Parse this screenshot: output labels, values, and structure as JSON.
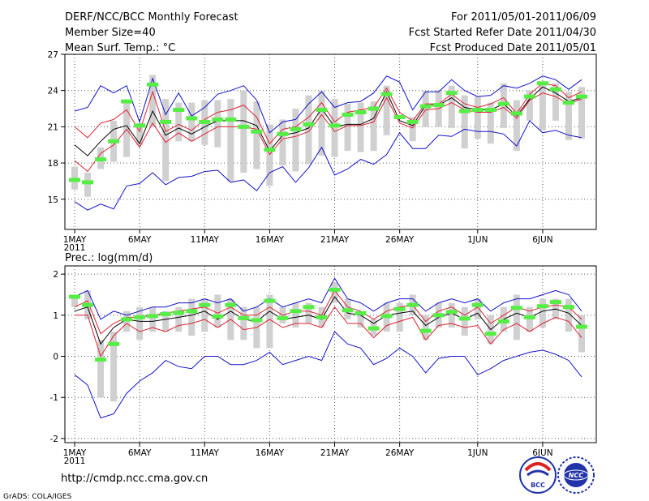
{
  "header": {
    "left_lines": [
      "DERF/NCC/BCC Monthly Forecast",
      "Member Size=40",
      "Mean Surf. Temp.: °C"
    ],
    "right_lines": [
      "For 2011/05/01-2011/06/09",
      "Fcst Started Refer Date 2011/04/30",
      "Fcst Produced Date 2011/05/01"
    ]
  },
  "footer": {
    "url": "http://cmdp.ncc.cma.gov.cn",
    "credit": "GrADS: COLA/IGES",
    "logo_bcc": "BCC",
    "logo_ncc": "NCC"
  },
  "colors": {
    "box": "#d0d0d0",
    "median": "#55ee44",
    "ensemble_mean": "#000000",
    "inner_range": "#dd2233",
    "outer_range": "#1111cc",
    "grid": "#555555"
  },
  "chart_data": [
    {
      "type": "line",
      "title": "Mean Surf. Temp.: °C",
      "ylim": [
        12.5,
        27
      ],
      "yticks": [
        15,
        18,
        21,
        24,
        27
      ],
      "x_range": [
        0,
        40
      ],
      "xticks": [
        {
          "x": 0,
          "label": "1MAY",
          "sub": "2011"
        },
        {
          "x": 5,
          "label": "6MAY"
        },
        {
          "x": 10,
          "label": "11MAY"
        },
        {
          "x": 15,
          "label": "16MAY"
        },
        {
          "x": 20,
          "label": "21MAY"
        },
        {
          "x": 25,
          "label": "26MAY"
        },
        {
          "x": 31,
          "label": "1JUN"
        },
        {
          "x": 36,
          "label": "6JUN"
        }
      ],
      "x": [
        0,
        1,
        2,
        3,
        4,
        5,
        6,
        7,
        8,
        9,
        10,
        11,
        12,
        13,
        14,
        15,
        16,
        17,
        18,
        19,
        20,
        21,
        22,
        23,
        24,
        25,
        26,
        27,
        28,
        29,
        30,
        31,
        32,
        33,
        34,
        35,
        36,
        37,
        38,
        39
      ],
      "series": [
        {
          "name": "box_low",
          "values": [
            15.8,
            15.2,
            17.5,
            18.1,
            18.5,
            19.5,
            21.0,
            16.5,
            19.8,
            19.8,
            19.5,
            19.3,
            16.5,
            17.2,
            17.5,
            16.1,
            17.8,
            17.3,
            17.9,
            18.6,
            18.5,
            19.0,
            18.9,
            19.0,
            20.3,
            22.0,
            19.8,
            21.0,
            21.0,
            20.9,
            19.2,
            20.0,
            19.6,
            20.9,
            19.0,
            21.5,
            20.7,
            21.5,
            19.9,
            20.0
          ]
        },
        {
          "name": "box_high",
          "values": [
            17.7,
            17.2,
            19.3,
            21.5,
            23.0,
            21.3,
            25.3,
            23.3,
            23.0,
            23.0,
            23.2,
            23.2,
            23.3,
            24.0,
            23.1,
            21.2,
            21.6,
            22.5,
            23.6,
            24.0,
            23.3,
            22.9,
            23.0,
            23.1,
            24.4,
            22.0,
            21.8,
            24.0,
            24.0,
            24.4,
            23.6,
            23.5,
            23.0,
            24.6,
            23.2,
            24.0,
            24.7,
            24.6,
            23.9,
            24.3
          ]
        },
        {
          "name": "median",
          "values": [
            16.6,
            16.4,
            18.3,
            19.8,
            23.1,
            21.1,
            24.5,
            21.4,
            22.4,
            21.7,
            21.4,
            21.6,
            21.6,
            21.0,
            20.6,
            19.1,
            20.4,
            20.8,
            21.2,
            22.4,
            21.1,
            22.0,
            22.2,
            22.5,
            23.7,
            21.8,
            21.4,
            22.7,
            22.8,
            23.8,
            22.3,
            22.4,
            22.4,
            22.9,
            22.1,
            23.5,
            24.6,
            24.1,
            23.0,
            23.5
          ]
        },
        {
          "name": "upper_outer",
          "values": [
            22.3,
            22.6,
            24.4,
            23.8,
            24.4,
            21.4,
            25.0,
            22.0,
            23.8,
            21.9,
            22.6,
            23.7,
            24.0,
            24.4,
            23.2,
            20.5,
            21.4,
            21.6,
            22.9,
            23.9,
            22.6,
            23.0,
            23.1,
            23.8,
            25.2,
            24.7,
            22.4,
            23.9,
            23.9,
            24.9,
            24.0,
            23.5,
            23.6,
            24.4,
            24.2,
            24.6,
            25.2,
            24.9,
            24.1,
            24.9
          ]
        },
        {
          "name": "upper_inner",
          "values": [
            21.0,
            20.1,
            21.3,
            21.6,
            22.4,
            20.6,
            23.9,
            20.6,
            21.2,
            20.7,
            21.6,
            22.2,
            22.4,
            22.8,
            21.8,
            19.6,
            20.8,
            21.0,
            21.8,
            23.0,
            21.4,
            22.2,
            22.4,
            22.6,
            24.2,
            22.2,
            21.5,
            22.9,
            22.9,
            23.7,
            22.9,
            22.6,
            22.9,
            23.4,
            22.1,
            23.7,
            24.6,
            24.4,
            23.4,
            23.9
          ]
        },
        {
          "name": "ensemble_mean",
          "values": [
            19.5,
            18.6,
            19.8,
            20.8,
            21.1,
            19.6,
            22.3,
            20.3,
            20.9,
            20.4,
            21.0,
            21.5,
            21.5,
            21.5,
            21.1,
            19.0,
            20.3,
            20.5,
            20.9,
            22.5,
            21.0,
            21.2,
            21.2,
            21.7,
            23.9,
            21.5,
            21.1,
            22.8,
            22.8,
            23.4,
            22.6,
            22.4,
            22.4,
            22.9,
            21.9,
            23.3,
            24.3,
            23.8,
            23.1,
            23.4
          ]
        },
        {
          "name": "lower_inner",
          "values": [
            18.2,
            17.3,
            18.8,
            19.5,
            20.8,
            19.3,
            21.3,
            19.7,
            20.5,
            19.8,
            20.4,
            21.0,
            21.0,
            21.0,
            20.8,
            18.7,
            20.0,
            20.2,
            20.6,
            22.0,
            20.6,
            21.1,
            21.1,
            21.4,
            23.4,
            21.3,
            20.9,
            22.4,
            22.5,
            23.0,
            22.4,
            22.2,
            22.2,
            22.6,
            21.7,
            23.2,
            23.8,
            23.5,
            22.9,
            23.3
          ]
        },
        {
          "name": "lower_outer",
          "values": [
            14.8,
            14.1,
            14.6,
            14.2,
            16.1,
            16.3,
            17.2,
            16.2,
            16.8,
            16.9,
            17.3,
            17.4,
            16.4,
            16.6,
            15.7,
            17.2,
            17.7,
            16.4,
            17.6,
            19.3,
            17.0,
            17.5,
            18.3,
            17.9,
            18.7,
            20.5,
            19.2,
            19.2,
            20.3,
            20.2,
            20.8,
            20.6,
            20.6,
            20.4,
            19.4,
            21.5,
            20.5,
            20.7,
            20.3,
            20.1
          ]
        }
      ]
    },
    {
      "type": "line",
      "title": "Prec.: log(mm/d)",
      "ylim": [
        -2.1,
        2.2
      ],
      "yticks": [
        -2,
        -1,
        0,
        1,
        2
      ],
      "x_range": [
        0,
        40
      ],
      "xticks": [
        {
          "x": 0,
          "label": "1MAY",
          "sub": "2011"
        },
        {
          "x": 5,
          "label": "6MAY"
        },
        {
          "x": 10,
          "label": "11MAY"
        },
        {
          "x": 15,
          "label": "16MAY"
        },
        {
          "x": 20,
          "label": "21MAY"
        },
        {
          "x": 25,
          "label": "26MAY"
        },
        {
          "x": 31,
          "label": "1JUN"
        },
        {
          "x": 36,
          "label": "6JUN"
        }
      ],
      "x": [
        0,
        1,
        2,
        3,
        4,
        5,
        6,
        7,
        8,
        9,
        10,
        11,
        12,
        13,
        14,
        15,
        16,
        17,
        18,
        19,
        20,
        21,
        22,
        23,
        24,
        25,
        26,
        27,
        28,
        29,
        30,
        31,
        32,
        33,
        34,
        35,
        36,
        37,
        38,
        39
      ],
      "series": [
        {
          "name": "box_low",
          "values": [
            1.2,
            0.9,
            -1.0,
            -1.1,
            0.6,
            0.4,
            0.6,
            0.6,
            0.6,
            0.5,
            0.6,
            0.7,
            0.4,
            0.4,
            0.2,
            0.2,
            0.8,
            0.7,
            0.8,
            0.7,
            1.3,
            0.9,
            0.7,
            0.5,
            0.6,
            0.6,
            1.0,
            0.4,
            0.7,
            0.7,
            0.5,
            0.9,
            0.3,
            0.6,
            0.4,
            0.6,
            0.7,
            0.9,
            0.6,
            0.1
          ]
        },
        {
          "name": "box_high",
          "values": [
            1.5,
            1.6,
            0.4,
            0.6,
            1.1,
            1.2,
            1.2,
            1.1,
            1.2,
            1.4,
            1.4,
            1.5,
            1.4,
            1.2,
            1.2,
            1.5,
            1.2,
            1.3,
            1.3,
            1.2,
            1.8,
            1.4,
            1.1,
            0.9,
            1.3,
            1.3,
            1.5,
            1.0,
            1.3,
            1.3,
            1.2,
            1.4,
            1.0,
            1.2,
            1.5,
            1.2,
            1.4,
            1.4,
            1.4,
            1.0
          ]
        },
        {
          "name": "median",
          "values": [
            1.45,
            1.25,
            -0.08,
            0.3,
            0.9,
            0.95,
            0.98,
            1.03,
            1.06,
            1.1,
            1.25,
            0.97,
            1.25,
            0.93,
            0.88,
            1.35,
            0.93,
            1.1,
            1.2,
            0.95,
            1.62,
            1.12,
            1.05,
            0.68,
            0.98,
            1.15,
            1.25,
            0.62,
            1.0,
            1.08,
            0.92,
            1.25,
            0.55,
            0.85,
            1.18,
            0.95,
            1.22,
            1.32,
            1.2,
            0.72
          ]
        },
        {
          "name": "upper_outer",
          "values": [
            1.45,
            1.6,
            0.9,
            1.1,
            1.0,
            1.1,
            1.2,
            1.2,
            1.3,
            1.3,
            1.4,
            1.3,
            1.4,
            1.1,
            1.2,
            1.4,
            1.2,
            1.3,
            1.4,
            1.3,
            1.9,
            1.4,
            1.3,
            1.1,
            1.3,
            1.4,
            1.4,
            1.1,
            1.3,
            1.4,
            1.3,
            1.4,
            1.1,
            1.3,
            1.4,
            1.4,
            1.5,
            1.6,
            1.5,
            1.1
          ]
        },
        {
          "name": "upper_inner",
          "values": [
            1.2,
            1.35,
            0.55,
            0.8,
            0.95,
            0.95,
            1.0,
            1.05,
            1.1,
            1.15,
            1.2,
            1.05,
            1.2,
            1.0,
            1.0,
            1.2,
            1.0,
            1.1,
            1.1,
            1.0,
            1.6,
            1.2,
            1.1,
            0.9,
            1.1,
            1.2,
            1.25,
            0.85,
            1.1,
            1.2,
            1.0,
            1.2,
            0.8,
            1.0,
            1.2,
            1.1,
            1.2,
            1.25,
            1.2,
            0.9
          ]
        },
        {
          "name": "ensemble_mean",
          "values": [
            1.1,
            1.2,
            0.3,
            0.7,
            0.9,
            0.85,
            0.85,
            0.9,
            0.95,
            1.0,
            1.1,
            0.9,
            1.1,
            0.9,
            0.85,
            1.1,
            0.9,
            0.95,
            1.0,
            0.9,
            1.45,
            1.05,
            1.0,
            0.8,
            1.0,
            1.05,
            1.1,
            0.75,
            0.95,
            1.05,
            0.9,
            1.05,
            0.65,
            0.9,
            1.05,
            0.95,
            1.1,
            1.15,
            1.05,
            0.75
          ]
        },
        {
          "name": "lower_inner",
          "values": [
            1.0,
            1.0,
            0.0,
            0.5,
            0.8,
            0.6,
            0.7,
            0.6,
            0.75,
            0.8,
            0.9,
            0.7,
            0.9,
            0.65,
            0.7,
            0.9,
            0.7,
            0.8,
            0.8,
            0.7,
            1.2,
            0.8,
            0.8,
            0.45,
            0.75,
            0.85,
            0.95,
            0.4,
            0.75,
            0.8,
            0.7,
            0.75,
            0.3,
            0.65,
            0.8,
            0.6,
            0.8,
            0.95,
            0.85,
            0.45
          ]
        },
        {
          "name": "lower_outer",
          "values": [
            -0.45,
            -0.7,
            -1.5,
            -1.4,
            -0.9,
            -0.6,
            -0.4,
            -0.1,
            -0.25,
            -0.3,
            0.0,
            0.0,
            -0.2,
            -0.2,
            -0.1,
            0.1,
            -0.2,
            -0.1,
            0.0,
            -0.1,
            0.6,
            0.3,
            0.2,
            -0.2,
            -0.05,
            0.2,
            0.0,
            -0.4,
            -0.05,
            0.0,
            0.0,
            -0.45,
            -0.3,
            -0.1,
            0.0,
            0.1,
            0.15,
            0.05,
            -0.1,
            -0.5
          ]
        }
      ]
    }
  ]
}
